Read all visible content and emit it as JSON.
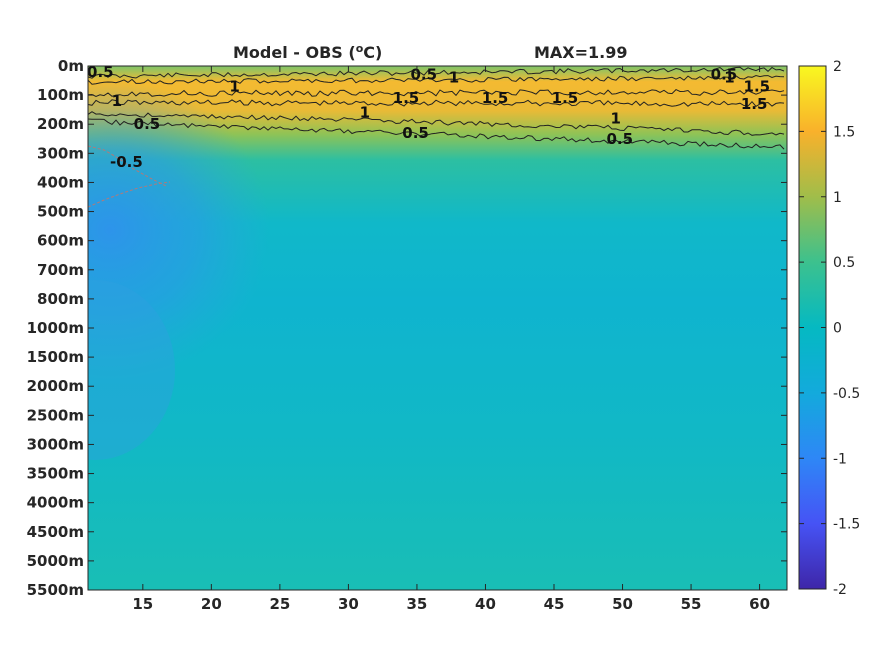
{
  "chart_data": {
    "type": "heatmap",
    "title": "Model - OBS (",
    "title_unit": "C)",
    "title_degree": "o",
    "max_label": "MAX=1.99",
    "x_ticks": [
      "15",
      "20",
      "25",
      "30",
      "35",
      "40",
      "45",
      "50",
      "55",
      "60"
    ],
    "x_tick_values": [
      15,
      20,
      25,
      30,
      35,
      40,
      45,
      50,
      55,
      60
    ],
    "xlim": [
      11,
      62
    ],
    "y_ticks": [
      "0m",
      "100m",
      "200m",
      "300m",
      "400m",
      "500m",
      "600m",
      "700m",
      "800m",
      "1000m",
      "1500m",
      "2000m",
      "2500m",
      "3000m",
      "3500m",
      "4000m",
      "4500m",
      "5000m",
      "5500m"
    ],
    "colorbar_ticks": [
      "2",
      "1.5",
      "1",
      "0.5",
      "0",
      "-0.5",
      "-1",
      "-1.5",
      "-2"
    ],
    "colorbar_values": [
      2,
      1.5,
      1,
      0.5,
      0,
      -0.5,
      -1,
      -1.5,
      -2
    ],
    "clim": [
      -2,
      2
    ],
    "colormap": "parula",
    "max_value": 1.99,
    "contour_levels": [
      0.5,
      1,
      1.5,
      -0.5
    ],
    "contour_labels": [
      {
        "text": "0.5",
        "x": 11.9,
        "level": 0.2
      },
      {
        "text": "0.5",
        "x": 15.3,
        "level": 2.0
      },
      {
        "text": "1",
        "x": 13.1,
        "level": 1.2
      },
      {
        "text": "1",
        "x": 21.7,
        "level": 0.7
      },
      {
        "text": "0.5",
        "x": 35.5,
        "level": 0.3
      },
      {
        "text": "1",
        "x": 37.7,
        "level": 0.4
      },
      {
        "text": "1.5",
        "x": 34.2,
        "level": 1.1
      },
      {
        "text": "1.5",
        "x": 40.7,
        "level": 1.1
      },
      {
        "text": "1",
        "x": 31.2,
        "level": 1.6
      },
      {
        "text": "0.5",
        "x": 34.9,
        "level": 2.3
      },
      {
        "text": "1.5",
        "x": 45.8,
        "level": 1.1
      },
      {
        "text": "1",
        "x": 49.5,
        "level": 1.8
      },
      {
        "text": "0.5",
        "x": 49.8,
        "level": 2.5
      },
      {
        "text": "0.5",
        "x": 57.4,
        "level": 0.3
      },
      {
        "text": "1",
        "x": 57.8,
        "level": 0.4
      },
      {
        "text": "1.5",
        "x": 59.8,
        "level": 0.7
      },
      {
        "text": "1.5",
        "x": 59.6,
        "level": 1.3
      },
      {
        "text": "-0.5",
        "x": 13.8,
        "level": 3.3
      }
    ]
  }
}
